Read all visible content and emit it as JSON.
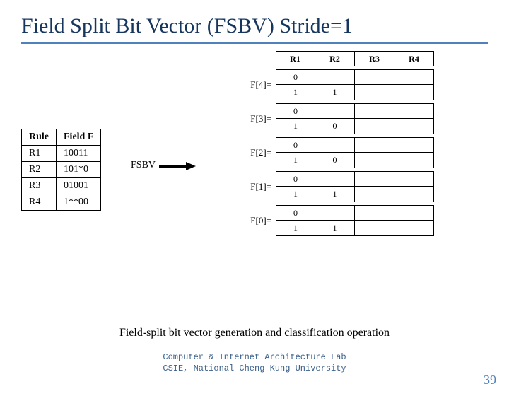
{
  "title": "Field Split Bit Vector (FSBV) Stride=1",
  "rule_table": {
    "columns": [
      "Rule",
      "Field F"
    ],
    "rows": [
      [
        "R1",
        "10011"
      ],
      [
        "R2",
        "101*0"
      ],
      [
        "R3",
        "01001"
      ],
      [
        "R4",
        "1**00"
      ]
    ]
  },
  "fsbv_label": "FSBV",
  "grid": {
    "headers": [
      "R1",
      "R2",
      "R3",
      "R4"
    ],
    "blocks": [
      {
        "label": "F[4]=",
        "rows": [
          [
            "0",
            "",
            "",
            ""
          ],
          [
            "1",
            "1",
            "",
            ""
          ]
        ]
      },
      {
        "label": "F[3]=",
        "rows": [
          [
            "0",
            "",
            "",
            ""
          ],
          [
            "1",
            "0",
            "",
            ""
          ]
        ]
      },
      {
        "label": "F[2]=",
        "rows": [
          [
            "0",
            "",
            "",
            ""
          ],
          [
            "1",
            "0",
            "",
            ""
          ]
        ]
      },
      {
        "label": "F[1]=",
        "rows": [
          [
            "0",
            "",
            "",
            ""
          ],
          [
            "1",
            "1",
            "",
            ""
          ]
        ]
      },
      {
        "label": "F[0]=",
        "rows": [
          [
            "0",
            "",
            "",
            ""
          ],
          [
            "1",
            "1",
            "",
            ""
          ]
        ]
      }
    ]
  },
  "caption": "Field-split bit vector generation and classification operation",
  "footer_line1": "Computer & Internet Architecture Lab",
  "footer_line2": "CSIE, National Cheng Kung University",
  "page_number": "39",
  "colors": {
    "title_color": "#17365d",
    "accent": "#4f81bd",
    "border": "#000000",
    "bg": "#ffffff"
  }
}
